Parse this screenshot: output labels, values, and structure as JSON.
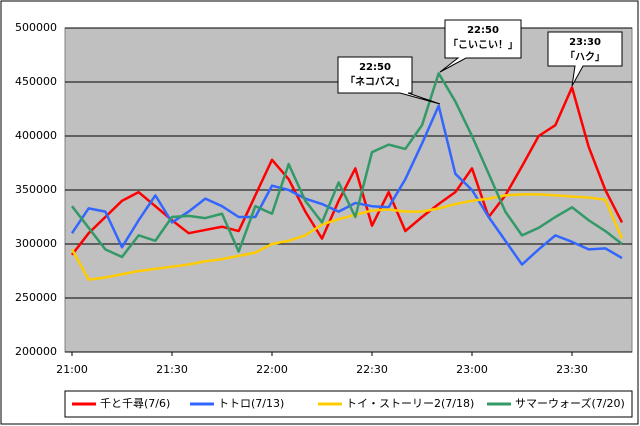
{
  "chart_data": {
    "type": "line",
    "categories": [
      "21:00",
      null,
      null,
      null,
      null,
      null,
      "21:30",
      null,
      null,
      null,
      null,
      null,
      "22:00",
      null,
      null,
      null,
      null,
      null,
      "22:30",
      null,
      null,
      null,
      null,
      null,
      "23:00",
      null,
      null,
      null,
      null,
      null,
      "23:30",
      null,
      null,
      null
    ],
    "series": [
      {
        "name": "千と千尋(7/6)",
        "color": "#ff0000",
        "values": [
          290000,
          310000,
          325000,
          340000,
          348000,
          335000,
          322000,
          310000,
          313000,
          316000,
          312000,
          345000,
          378000,
          360000,
          330000,
          305000,
          340000,
          370000,
          317000,
          348000,
          312000,
          325000,
          337000,
          348000,
          370000,
          325000,
          345000,
          372000,
          400000,
          410000,
          445000,
          390000,
          350000,
          320000
        ]
      },
      {
        "name": "トトロ(7/13)",
        "color": "#3366ff",
        "values": [
          310000,
          333000,
          330000,
          297000,
          322000,
          345000,
          320000,
          330000,
          342000,
          335000,
          325000,
          325000,
          354000,
          350000,
          342000,
          337000,
          330000,
          338000,
          335000,
          334000,
          360000,
          393000,
          428000,
          365000,
          350000,
          325000,
          303000,
          281000,
          295000,
          308000,
          302000,
          295000,
          296000,
          287000
        ]
      },
      {
        "name": "トイ・ストーリー2(7/18)",
        "color": "#ffcc00",
        "values": [
          295000,
          267000,
          269000,
          272000,
          275000,
          277000,
          279000,
          281000,
          284000,
          286000,
          289000,
          292000,
          300000,
          303000,
          308000,
          318000,
          323000,
          327000,
          331000,
          332000,
          330000,
          330000,
          333000,
          337000,
          340000,
          342000,
          345000,
          346000,
          346000,
          345000,
          344000,
          343000,
          341000,
          305000
        ]
      },
      {
        "name": "サマーウォーズ(7/20)",
        "color": "#339966",
        "values": [
          335000,
          315000,
          295000,
          288000,
          308000,
          303000,
          325000,
          326000,
          324000,
          328000,
          293000,
          335000,
          328000,
          374000,
          340000,
          320000,
          357000,
          325000,
          385000,
          392000,
          388000,
          410000,
          458000,
          432000,
          400000,
          365000,
          330000,
          308000,
          315000,
          325000,
          334000,
          322000,
          312000,
          300000
        ]
      }
    ],
    "ylim": [
      200000,
      500000
    ],
    "yticks": [
      200000,
      250000,
      300000,
      350000,
      400000,
      450000,
      500000
    ],
    "grid": true,
    "legend": "bottom",
    "annotations": [
      {
        "lines": [
          "22:50",
          "「ネコバス」"
        ]
      },
      {
        "lines": [
          "22:50",
          "「こいこい！」"
        ]
      },
      {
        "lines": [
          "23:30",
          "「ハク」"
        ]
      }
    ]
  }
}
